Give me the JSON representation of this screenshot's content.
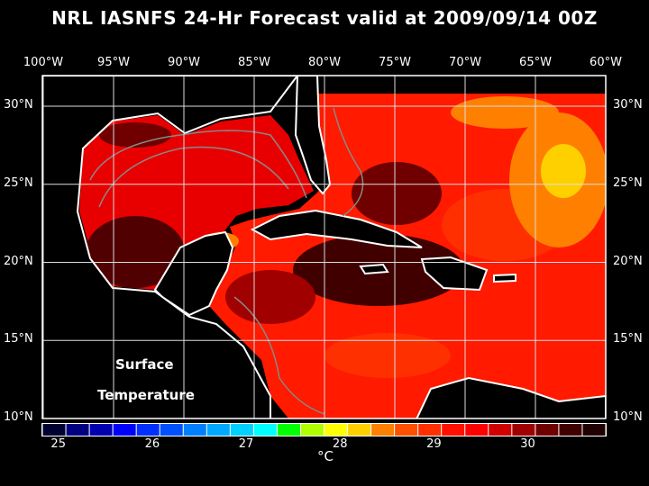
{
  "title": "NRL IASNFS  24-Hr Forecast valid at 2009/09/14 00Z",
  "lon_labels": [
    "100°W",
    "95°W",
    "90°W",
    "85°W",
    "80°W",
    "75°W",
    "70°W",
    "65°W",
    "60°W"
  ],
  "lat_labels": [
    "30°N",
    "25°N",
    "20°N",
    "15°N",
    "10°N"
  ],
  "map_text": {
    "line1": "Surface",
    "line2": "Temperature"
  },
  "colorbar": {
    "unit": "°C",
    "tick_labels": [
      "25",
      "26",
      "27",
      "28",
      "29",
      "30"
    ],
    "range": [
      24.83,
      30.83
    ],
    "colors": [
      "#000033",
      "#000080",
      "#0000b0",
      "#0000ff",
      "#0030ff",
      "#0050ff",
      "#0080ff",
      "#00a8ff",
      "#00d0ff",
      "#00ffff",
      "#00ff00",
      "#b0ff00",
      "#ffff00",
      "#ffd000",
      "#ff8000",
      "#ff5000",
      "#ff3000",
      "#ff1000",
      "#ff0000",
      "#d00000",
      "#a00000",
      "#700000",
      "#400000",
      "#200000"
    ]
  }
}
